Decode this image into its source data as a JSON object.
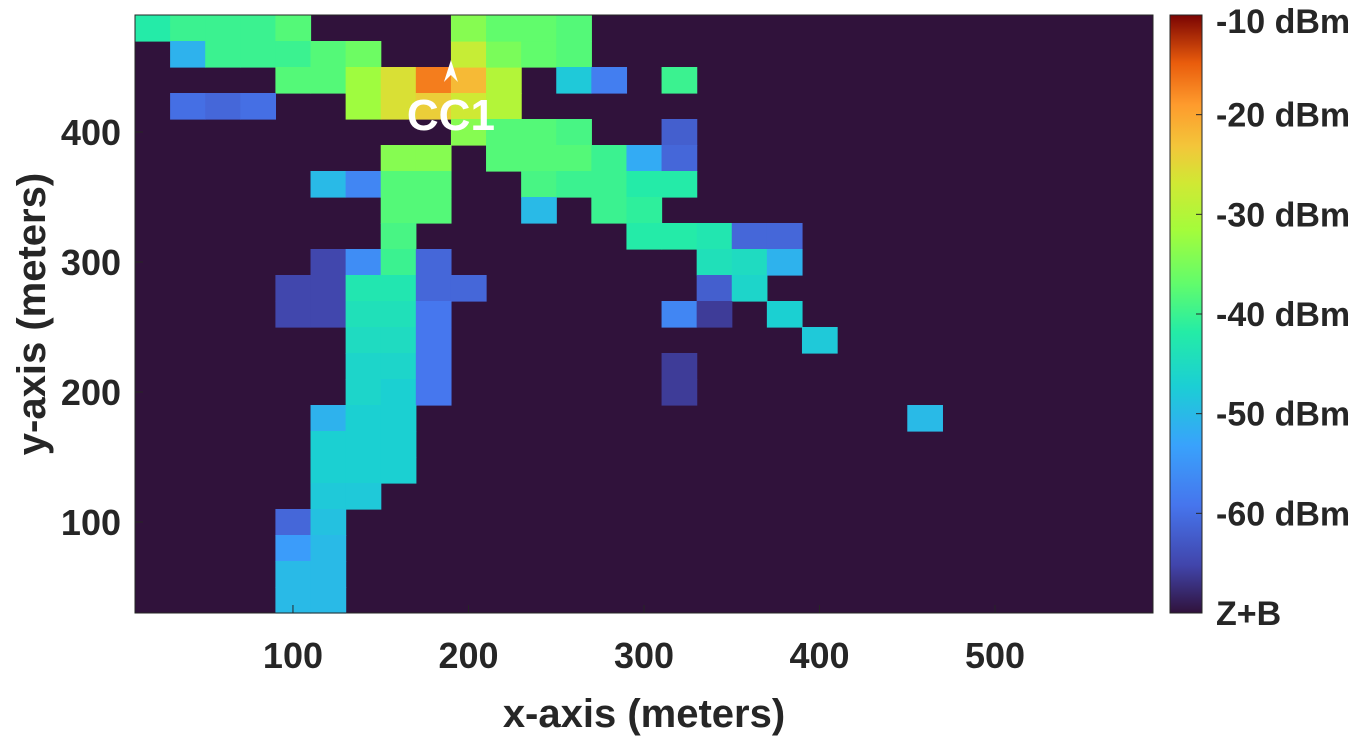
{
  "chart_data": {
    "type": "heatmap",
    "xlabel": "x-axis (meters)",
    "ylabel": "y-axis (meters)",
    "xlim": [
      10,
      590
    ],
    "ylim": [
      30,
      490
    ],
    "xticks": [
      100,
      200,
      300,
      400,
      500
    ],
    "yticks": [
      100,
      200,
      300,
      400
    ],
    "cell_size": [
      20,
      20
    ],
    "background_value": "Z+B",
    "colorbar": {
      "range_dbm": [
        -70,
        -10
      ],
      "ticks": [
        {
          "value": -10,
          "label": "-10 dBm"
        },
        {
          "value": -20,
          "label": "-20 dBm"
        },
        {
          "value": -30,
          "label": "-30 dBm"
        },
        {
          "value": -40,
          "label": "-40 dBm"
        },
        {
          "value": -50,
          "label": "-50 dBm"
        },
        {
          "value": -60,
          "label": "-60 dBm"
        },
        {
          "value": -70,
          "label": "Z+B"
        }
      ],
      "background_color": "#30123b"
    },
    "cells_dbm": [
      [
        20,
        480,
        -42
      ],
      [
        40,
        480,
        -40
      ],
      [
        60,
        480,
        -40
      ],
      [
        80,
        480,
        -40
      ],
      [
        100,
        480,
        -38
      ],
      [
        40,
        460,
        -51
      ],
      [
        60,
        460,
        -40
      ],
      [
        80,
        460,
        -40
      ],
      [
        100,
        460,
        -40
      ],
      [
        120,
        460,
        -38
      ],
      [
        140,
        460,
        -36
      ],
      [
        100,
        440,
        -38
      ],
      [
        120,
        440,
        -38
      ],
      [
        140,
        440,
        -32
      ],
      [
        160,
        440,
        -26
      ],
      [
        180,
        440,
        -17
      ],
      [
        200,
        440,
        -22
      ],
      [
        220,
        440,
        -30
      ],
      [
        40,
        420,
        -60
      ],
      [
        60,
        420,
        -61
      ],
      [
        80,
        420,
        -60
      ],
      [
        140,
        420,
        -32
      ],
      [
        160,
        420,
        -26
      ],
      [
        180,
        420,
        -24
      ],
      [
        200,
        420,
        -27
      ],
      [
        220,
        420,
        -30
      ],
      [
        200,
        460,
        -28
      ],
      [
        220,
        460,
        -35
      ],
      [
        240,
        460,
        -37
      ],
      [
        260,
        460,
        -38
      ],
      [
        200,
        480,
        -34
      ],
      [
        220,
        480,
        -37
      ],
      [
        240,
        480,
        -37
      ],
      [
        260,
        480,
        -38
      ],
      [
        260,
        440,
        -48
      ],
      [
        280,
        440,
        -58
      ],
      [
        320,
        440,
        -40
      ],
      [
        200,
        400,
        -34
      ],
      [
        220,
        400,
        -38
      ],
      [
        240,
        400,
        -38
      ],
      [
        260,
        400,
        -39
      ],
      [
        320,
        400,
        -62
      ],
      [
        160,
        380,
        -34
      ],
      [
        180,
        380,
        -34
      ],
      [
        220,
        380,
        -38
      ],
      [
        240,
        380,
        -38
      ],
      [
        260,
        380,
        -38
      ],
      [
        280,
        380,
        -40
      ],
      [
        300,
        380,
        -52
      ],
      [
        320,
        380,
        -61
      ],
      [
        120,
        360,
        -50
      ],
      [
        140,
        360,
        -57
      ],
      [
        160,
        360,
        -38
      ],
      [
        180,
        360,
        -38
      ],
      [
        240,
        360,
        -39
      ],
      [
        260,
        360,
        -40
      ],
      [
        280,
        360,
        -40
      ],
      [
        300,
        360,
        -42
      ],
      [
        320,
        360,
        -42
      ],
      [
        160,
        340,
        -38
      ],
      [
        180,
        340,
        -38
      ],
      [
        240,
        340,
        -50
      ],
      [
        280,
        340,
        -40
      ],
      [
        300,
        340,
        -41
      ],
      [
        160,
        320,
        -39
      ],
      [
        300,
        320,
        -42
      ],
      [
        320,
        320,
        -42
      ],
      [
        340,
        320,
        -43
      ],
      [
        360,
        320,
        -61
      ],
      [
        380,
        320,
        -61
      ],
      [
        120,
        300,
        -65
      ],
      [
        140,
        300,
        -56
      ],
      [
        160,
        300,
        -40
      ],
      [
        180,
        300,
        -61
      ],
      [
        340,
        300,
        -44
      ],
      [
        360,
        300,
        -45
      ],
      [
        380,
        300,
        -51
      ],
      [
        100,
        280,
        -65
      ],
      [
        120,
        280,
        -65
      ],
      [
        140,
        280,
        -43
      ],
      [
        160,
        280,
        -43
      ],
      [
        180,
        280,
        -61
      ],
      [
        200,
        280,
        -61
      ],
      [
        340,
        280,
        -62
      ],
      [
        360,
        280,
        -46
      ],
      [
        100,
        260,
        -65
      ],
      [
        120,
        260,
        -65
      ],
      [
        140,
        260,
        -44
      ],
      [
        160,
        260,
        -44
      ],
      [
        180,
        260,
        -59
      ],
      [
        320,
        260,
        -57
      ],
      [
        340,
        260,
        -66
      ],
      [
        380,
        260,
        -47
      ],
      [
        140,
        240,
        -45
      ],
      [
        160,
        240,
        -45
      ],
      [
        180,
        240,
        -59
      ],
      [
        400,
        240,
        -48
      ],
      [
        140,
        220,
        -46
      ],
      [
        160,
        220,
        -46
      ],
      [
        180,
        220,
        -59
      ],
      [
        320,
        220,
        -66
      ],
      [
        140,
        200,
        -46
      ],
      [
        160,
        200,
        -47
      ],
      [
        180,
        200,
        -59
      ],
      [
        320,
        200,
        -66
      ],
      [
        120,
        180,
        -51
      ],
      [
        140,
        180,
        -47
      ],
      [
        160,
        180,
        -47
      ],
      [
        460,
        180,
        -50
      ],
      [
        120,
        160,
        -47
      ],
      [
        140,
        160,
        -47
      ],
      [
        160,
        160,
        -47
      ],
      [
        120,
        140,
        -47
      ],
      [
        140,
        140,
        -47
      ],
      [
        160,
        140,
        -47
      ],
      [
        120,
        120,
        -48
      ],
      [
        140,
        120,
        -48
      ],
      [
        100,
        100,
        -61
      ],
      [
        120,
        100,
        -49
      ],
      [
        100,
        80,
        -54
      ],
      [
        120,
        80,
        -50
      ],
      [
        100,
        60,
        -50
      ],
      [
        120,
        60,
        -50
      ],
      [
        100,
        40,
        -50
      ],
      [
        120,
        40,
        -50
      ]
    ],
    "annotations": [
      {
        "label": "CC1",
        "x": 190,
        "y": 440,
        "marker": "arrow-up"
      }
    ]
  }
}
